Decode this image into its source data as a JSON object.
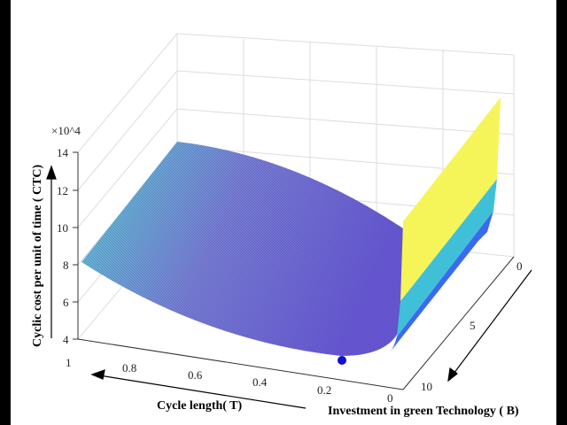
{
  "chart_data": {
    "type": "surface",
    "xlabel": "Cycle length( T)",
    "ylabel": "Investment in green Technology ( B)",
    "zlabel": "Cyclic cost per unit of time ( CTC)",
    "z_multiplier": "×10^4",
    "xlim": [
      0,
      1
    ],
    "ylim": [
      0,
      10
    ],
    "zlim": [
      4,
      14
    ],
    "x_ticks": [
      "1",
      "0.8",
      "0.6",
      "0.4",
      "0.2",
      "0"
    ],
    "y_ticks": [
      "0",
      "5",
      "10"
    ],
    "z_ticks": [
      "14",
      "12",
      "10",
      "8",
      "6",
      "4"
    ],
    "grid": true,
    "optimum_marker": {
      "T": 0.2,
      "B": 10,
      "color": "#1010d0"
    },
    "colors": {
      "low": "#7a6ad8",
      "mid": "#50c8d8",
      "high": "#f5f55a",
      "blue": "#3a6af0"
    }
  }
}
